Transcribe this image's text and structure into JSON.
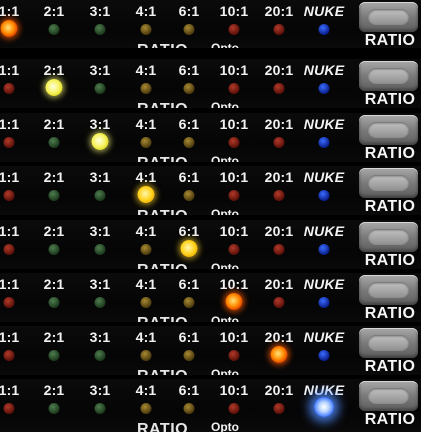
{
  "panel": {
    "ratios": [
      "1:1",
      "2:1",
      "3:1",
      "4:1",
      "6:1",
      "10:1",
      "20:1",
      "NUKE"
    ],
    "led_colors": [
      "red",
      "green",
      "green",
      "amber",
      "amber",
      "red",
      "red",
      "blue"
    ],
    "opto_label": "Opto",
    "section_label": "RATIO",
    "button_label": "RATIO"
  },
  "strips": [
    {
      "active_index": 0
    },
    {
      "active_index": 1
    },
    {
      "active_index": 2
    },
    {
      "active_index": 3
    },
    {
      "active_index": 4
    },
    {
      "active_index": 5
    },
    {
      "active_index": 6
    },
    {
      "active_index": 7
    }
  ]
}
